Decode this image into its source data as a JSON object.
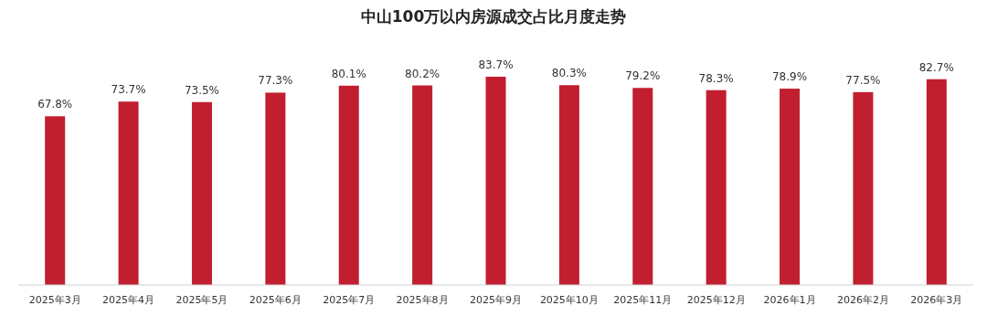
{
  "chart_data": {
    "type": "bar",
    "title": "中山100万以内房源成交占比月度走势",
    "categories": [
      "2025年3月",
      "2025年4月",
      "2025年5月",
      "2025年6月",
      "2025年7月",
      "2025年8月",
      "2025年9月",
      "2025年10月",
      "2025年11月",
      "2025年12月",
      "2026年1月",
      "2026年2月",
      "2026年3月"
    ],
    "values": [
      67.8,
      73.7,
      73.5,
      77.3,
      80.1,
      80.2,
      83.7,
      80.3,
      79.2,
      78.3,
      78.9,
      77.5,
      82.7
    ],
    "color": "#c11f2f",
    "value_labels": [
      "67.8%",
      "73.7%",
      "73.5%",
      "77.3%",
      "80.1%",
      "80.2%",
      "83.7%",
      "80.3%",
      "79.2%",
      "78.3%",
      "78.9%",
      "77.5%",
      "82.7%"
    ],
    "data_labels": true
  }
}
